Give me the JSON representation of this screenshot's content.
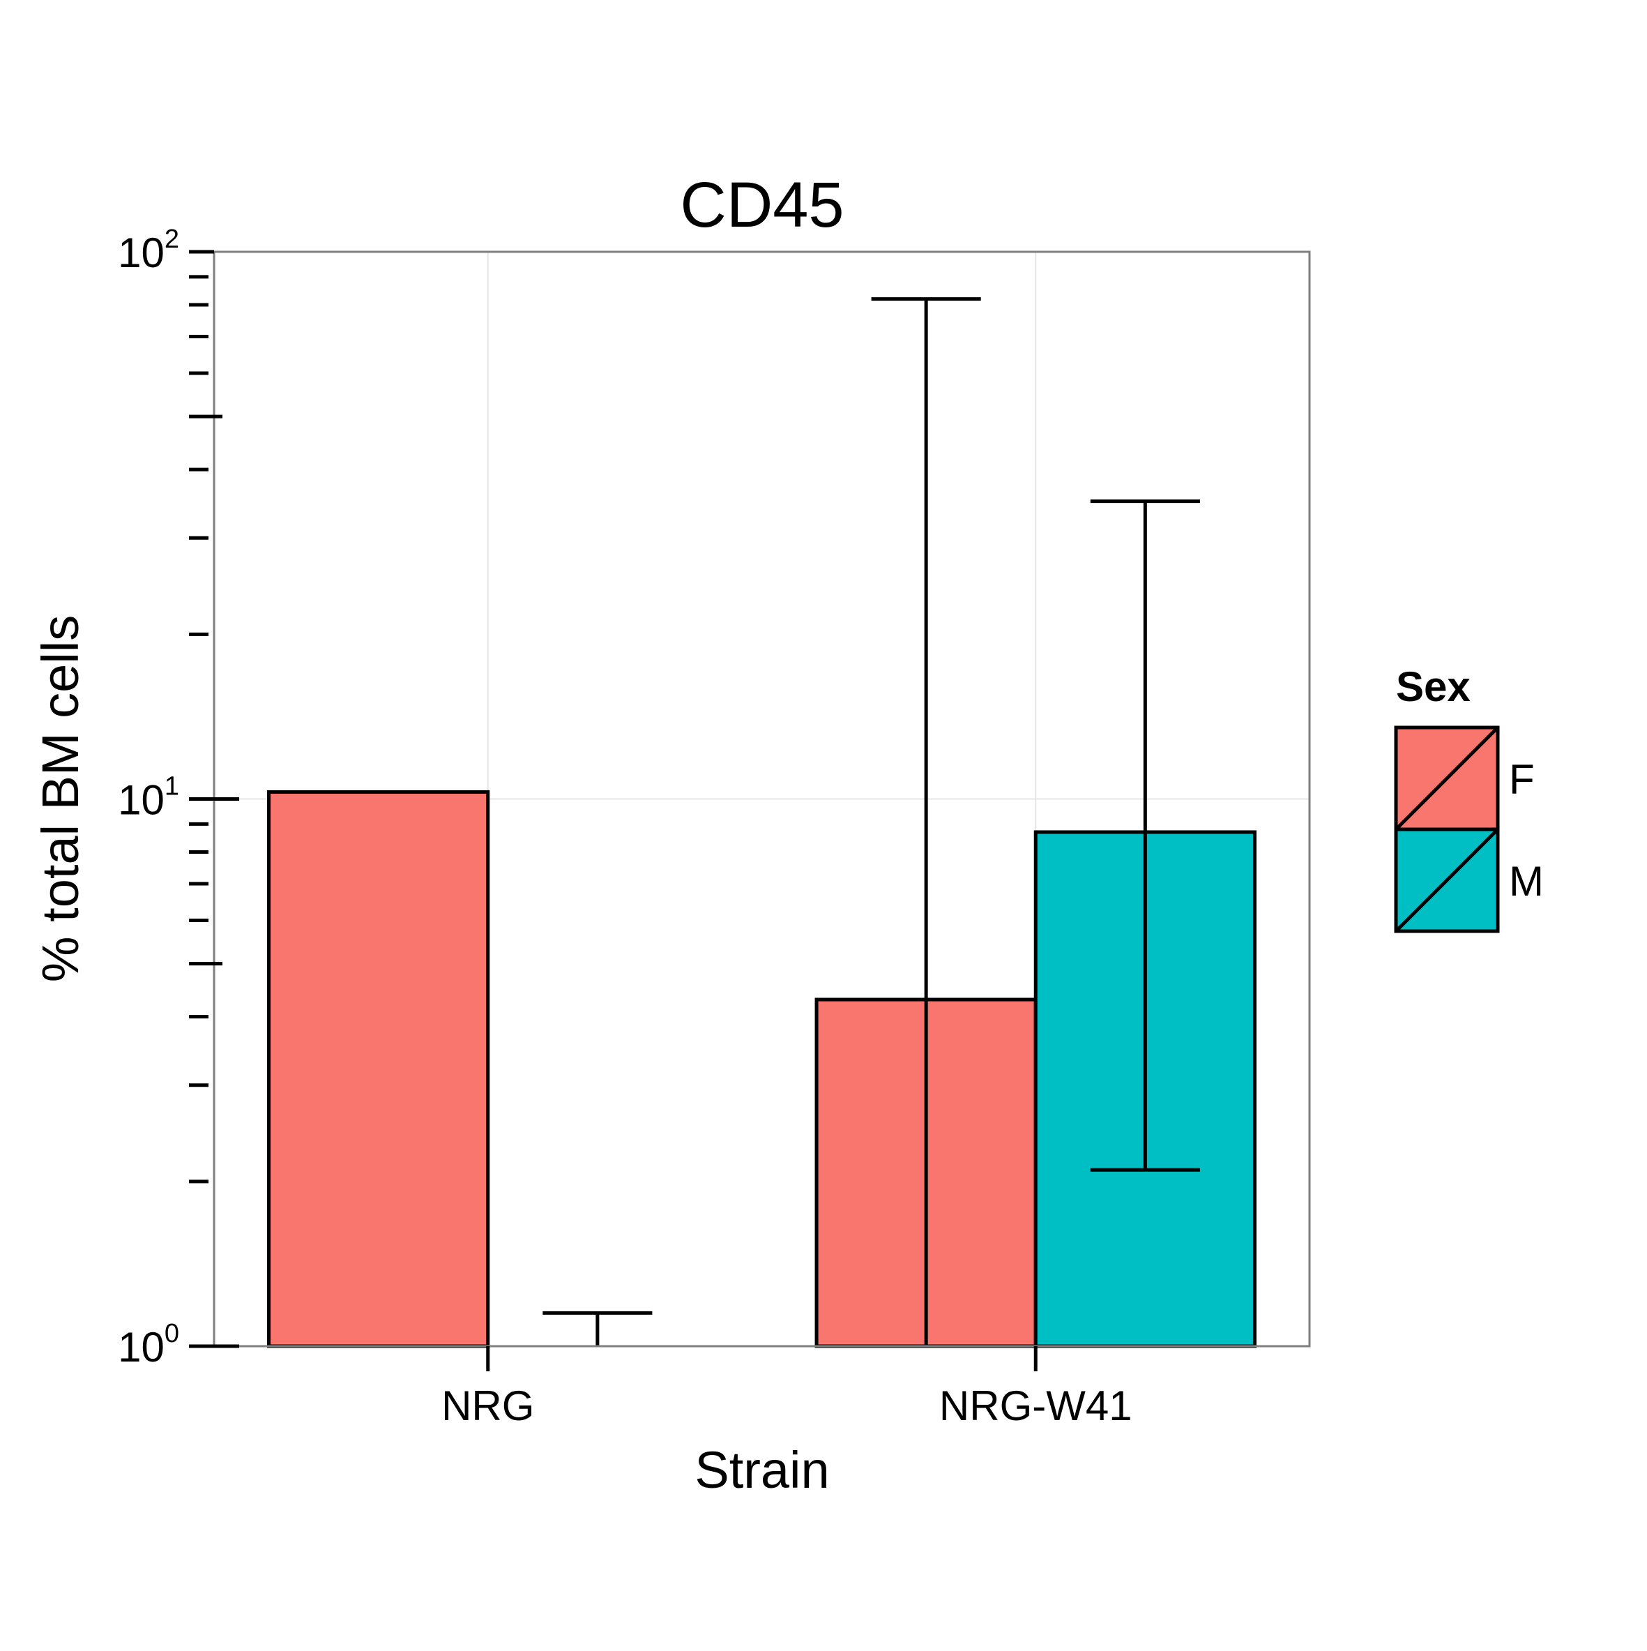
{
  "chart_data": {
    "type": "bar",
    "title": "CD45",
    "xlabel": "Strain",
    "ylabel": "% total BM cells",
    "y_scale": "log10",
    "ylim": [
      1,
      100
    ],
    "y_ticks": [
      {
        "base": "10",
        "exp": "0",
        "value": 1
      },
      {
        "base": "10",
        "exp": "1",
        "value": 10
      },
      {
        "base": "10",
        "exp": "2",
        "value": 100
      }
    ],
    "categories": [
      "NRG",
      "NRG-W41"
    ],
    "grid": true,
    "legend_position": "right",
    "legend": {
      "title": "Sex",
      "items": [
        {
          "label": "F",
          "color": "#F8766D"
        },
        {
          "label": "M",
          "color": "#00BFC4"
        }
      ]
    },
    "series": [
      {
        "name": "F",
        "color": "#F8766D",
        "values": [
          10.3,
          4.3
        ],
        "error_low": [
          null,
          1.0
        ],
        "error_high": [
          null,
          82
        ]
      },
      {
        "name": "M",
        "color": "#00BFC4",
        "values": [
          null,
          8.7
        ],
        "error_low": [
          null,
          2.1
        ],
        "error_high": [
          1.15,
          35
        ]
      }
    ]
  }
}
